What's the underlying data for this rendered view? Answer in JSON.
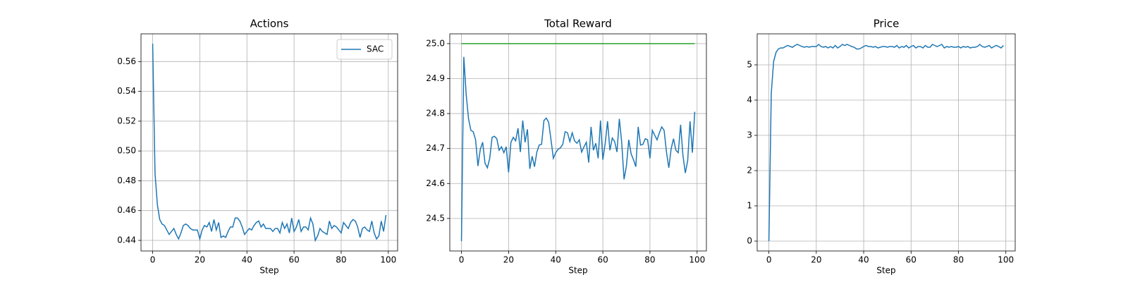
{
  "chart_data": [
    {
      "type": "line",
      "title": "Actions",
      "xlabel": "Step",
      "x": [
        0,
        1,
        2,
        3,
        4,
        5,
        6,
        7,
        8,
        9,
        10,
        11,
        12,
        13,
        14,
        15,
        16,
        17,
        18,
        19,
        20,
        21,
        22,
        23,
        24,
        25,
        26,
        27,
        28,
        29,
        30,
        31,
        32,
        33,
        34,
        35,
        36,
        37,
        38,
        39,
        40,
        41,
        42,
        43,
        44,
        45,
        46,
        47,
        48,
        49,
        50,
        51,
        52,
        53,
        54,
        55,
        56,
        57,
        58,
        59,
        60,
        61,
        62,
        63,
        64,
        65,
        66,
        67,
        68,
        69,
        70,
        71,
        72,
        73,
        74,
        75,
        76,
        77,
        78,
        79,
        80,
        81,
        82,
        83,
        84,
        85,
        86,
        87,
        88,
        89,
        90,
        91,
        92,
        93,
        94,
        95,
        96,
        97,
        98,
        99
      ],
      "series": [
        {
          "name": "SAC",
          "color": "#1f77b4",
          "values": [
            0.572,
            0.485,
            0.464,
            0.454,
            0.451,
            0.45,
            0.447,
            0.444,
            0.446,
            0.448,
            0.444,
            0.441,
            0.445,
            0.45,
            0.451,
            0.45,
            0.448,
            0.447,
            0.447,
            0.447,
            0.441,
            0.447,
            0.45,
            0.449,
            0.452,
            0.446,
            0.454,
            0.447,
            0.452,
            0.442,
            0.443,
            0.442,
            0.446,
            0.449,
            0.449,
            0.455,
            0.455,
            0.453,
            0.449,
            0.444,
            0.446,
            0.448,
            0.447,
            0.45,
            0.452,
            0.453,
            0.449,
            0.451,
            0.448,
            0.448,
            0.448,
            0.446,
            0.448,
            0.448,
            0.445,
            0.452,
            0.448,
            0.451,
            0.445,
            0.455,
            0.446,
            0.449,
            0.454,
            0.446,
            0.449,
            0.449,
            0.447,
            0.455,
            0.451,
            0.44,
            0.443,
            0.448,
            0.446,
            0.445,
            0.444,
            0.453,
            0.448,
            0.45,
            0.449,
            0.447,
            0.445,
            0.452,
            0.45,
            0.448,
            0.452,
            0.454,
            0.453,
            0.449,
            0.442,
            0.448,
            0.449,
            0.447,
            0.446,
            0.453,
            0.445,
            0.441,
            0.443,
            0.453,
            0.446,
            0.457
          ]
        }
      ],
      "xlim": [
        -4.95,
        103.95
      ],
      "xticks": [
        0,
        20,
        40,
        60,
        80,
        100
      ],
      "ylim": [
        0.4329,
        0.5786
      ],
      "yticks": [
        0.44,
        0.46,
        0.48,
        {
          "value": 0.5,
          "label": "0.50"
        },
        0.52,
        0.54,
        0.56
      ],
      "grid": true,
      "legend": "upper right"
    },
    {
      "type": "line",
      "title": "Total Reward",
      "xlabel": "Step",
      "x": [
        0,
        1,
        2,
        3,
        4,
        5,
        6,
        7,
        8,
        9,
        10,
        11,
        12,
        13,
        14,
        15,
        16,
        17,
        18,
        19,
        20,
        21,
        22,
        23,
        24,
        25,
        26,
        27,
        28,
        29,
        30,
        31,
        32,
        33,
        34,
        35,
        36,
        37,
        38,
        39,
        40,
        41,
        42,
        43,
        44,
        45,
        46,
        47,
        48,
        49,
        50,
        51,
        52,
        53,
        54,
        55,
        56,
        57,
        58,
        59,
        60,
        61,
        62,
        63,
        64,
        65,
        66,
        67,
        68,
        69,
        70,
        71,
        72,
        73,
        74,
        75,
        76,
        77,
        78,
        79,
        80,
        81,
        82,
        83,
        84,
        85,
        86,
        87,
        88,
        89,
        90,
        91,
        92,
        93,
        94,
        95,
        96,
        97,
        98,
        99
      ],
      "series": [
        {
          "color": "#1f77b4",
          "values": [
            24.435,
            24.962,
            24.855,
            24.785,
            24.752,
            24.748,
            24.725,
            24.65,
            24.698,
            24.718,
            24.658,
            24.645,
            24.672,
            24.732,
            24.735,
            24.728,
            24.695,
            24.705,
            24.688,
            24.705,
            24.632,
            24.718,
            24.732,
            24.722,
            24.758,
            24.69,
            24.78,
            24.718,
            24.755,
            24.642,
            24.678,
            24.648,
            24.69,
            24.71,
            24.712,
            24.78,
            24.787,
            24.775,
            24.725,
            24.672,
            24.688,
            24.698,
            24.702,
            24.712,
            24.748,
            24.745,
            24.72,
            24.745,
            24.722,
            24.715,
            24.725,
            24.69,
            24.705,
            24.718,
            24.66,
            24.762,
            24.695,
            24.715,
            24.672,
            24.78,
            24.668,
            24.715,
            24.778,
            24.695,
            24.73,
            24.72,
            24.69,
            24.785,
            24.718,
            24.612,
            24.65,
            24.725,
            24.685,
            24.668,
            24.648,
            24.762,
            24.71,
            24.712,
            24.728,
            24.725,
            24.672,
            24.752,
            24.738,
            24.725,
            24.745,
            24.762,
            24.752,
            24.69,
            24.645,
            24.7,
            24.728,
            24.695,
            24.688,
            24.768,
            24.68,
            24.63,
            24.665,
            24.778,
            24.688,
            24.805
          ]
        }
      ],
      "hline": {
        "value": 25,
        "color": "#2ca02c"
      },
      "xlim": [
        -4.95,
        103.95
      ],
      "xticks": [
        0,
        20,
        40,
        60,
        80,
        100
      ],
      "ylim": [
        24.407,
        25.028
      ],
      "yticks": [
        24.5,
        24.6,
        24.7,
        24.8,
        24.9,
        {
          "value": 25,
          "label": "25.0"
        }
      ],
      "grid": true
    },
    {
      "type": "line",
      "title": "Price",
      "xlabel": "Step",
      "x": [
        0,
        1,
        2,
        3,
        4,
        5,
        6,
        7,
        8,
        9,
        10,
        11,
        12,
        13,
        14,
        15,
        16,
        17,
        18,
        19,
        20,
        21,
        22,
        23,
        24,
        25,
        26,
        27,
        28,
        29,
        30,
        31,
        32,
        33,
        34,
        35,
        36,
        37,
        38,
        39,
        40,
        41,
        42,
        43,
        44,
        45,
        46,
        47,
        48,
        49,
        50,
        51,
        52,
        53,
        54,
        55,
        56,
        57,
        58,
        59,
        60,
        61,
        62,
        63,
        64,
        65,
        66,
        67,
        68,
        69,
        70,
        71,
        72,
        73,
        74,
        75,
        76,
        77,
        78,
        79,
        80,
        81,
        82,
        83,
        84,
        85,
        86,
        87,
        88,
        89,
        90,
        91,
        92,
        93,
        94,
        95,
        96,
        97,
        98,
        99
      ],
      "series": [
        {
          "color": "#1f77b4",
          "values": [
            0,
            4.2,
            5.1,
            5.35,
            5.45,
            5.48,
            5.48,
            5.52,
            5.55,
            5.52,
            5.5,
            5.55,
            5.58,
            5.55,
            5.52,
            5.5,
            5.52,
            5.5,
            5.52,
            5.52,
            5.52,
            5.58,
            5.52,
            5.5,
            5.52,
            5.48,
            5.52,
            5.48,
            5.55,
            5.48,
            5.52,
            5.58,
            5.55,
            5.58,
            5.55,
            5.52,
            5.5,
            5.45,
            5.45,
            5.48,
            5.52,
            5.55,
            5.52,
            5.52,
            5.5,
            5.52,
            5.48,
            5.5,
            5.52,
            5.52,
            5.5,
            5.52,
            5.52,
            5.5,
            5.55,
            5.48,
            5.52,
            5.5,
            5.55,
            5.48,
            5.52,
            5.55,
            5.48,
            5.52,
            5.52,
            5.48,
            5.55,
            5.5,
            5.5,
            5.58,
            5.55,
            5.52,
            5.55,
            5.58,
            5.48,
            5.52,
            5.5,
            5.52,
            5.5,
            5.5,
            5.52,
            5.48,
            5.52,
            5.5,
            5.52,
            5.48,
            5.5,
            5.5,
            5.52,
            5.58,
            5.52,
            5.5,
            5.52,
            5.55,
            5.48,
            5.52,
            5.55,
            5.52,
            5.48,
            5.55
          ]
        }
      ],
      "xlim": [
        -4.95,
        103.95
      ],
      "xticks": [
        0,
        20,
        40,
        60,
        80,
        100
      ],
      "ylim": [
        -0.28,
        5.88
      ],
      "yticks": [
        0,
        1,
        2,
        3,
        4,
        5
      ],
      "grid": true
    }
  ]
}
